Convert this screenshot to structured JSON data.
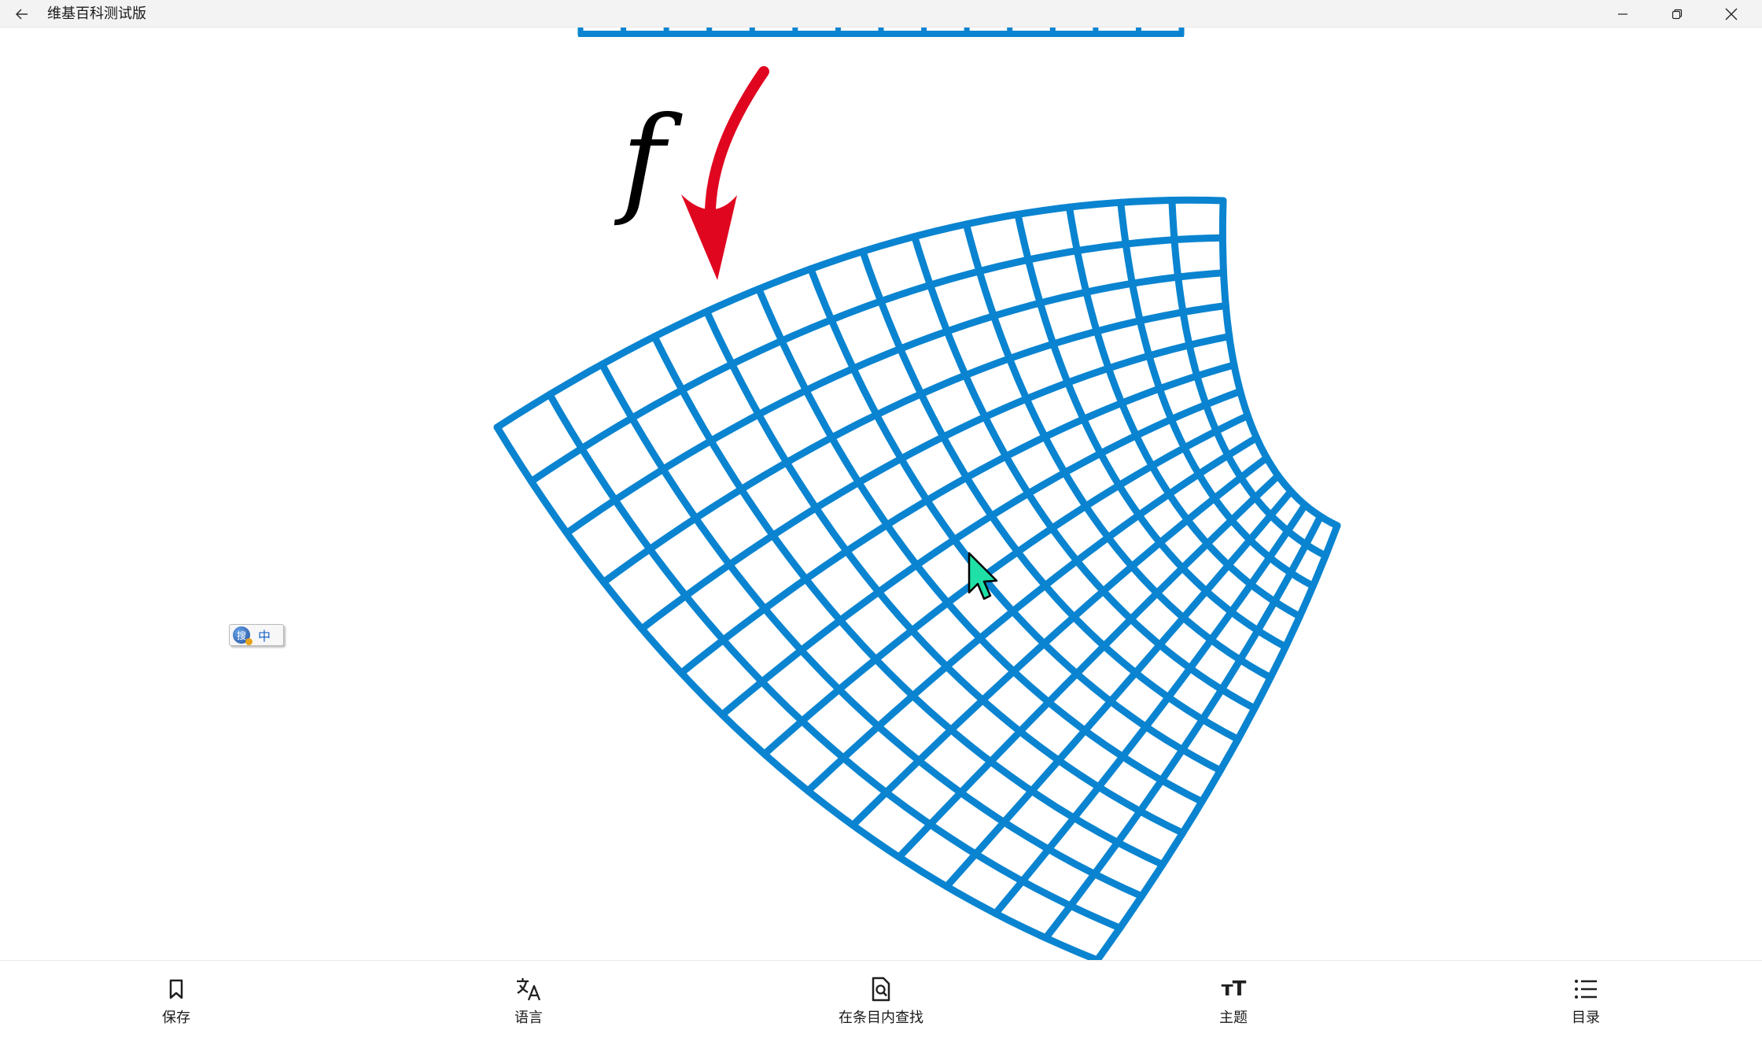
{
  "window": {
    "title": "维基百科测试版",
    "back_icon": "back-arrow-icon",
    "minimize_icon": "minimize-icon",
    "maximize_icon": "restore-icon",
    "close_icon": "close-icon"
  },
  "figure": {
    "function_label": "f",
    "grid_color": "#0a84d0",
    "arrow_color": "#e0061f",
    "grid_divisions": 14
  },
  "ime": {
    "logo_icon": "sogou-ime-icon",
    "logo_char": "搜",
    "lang_label": "中"
  },
  "toolbar": {
    "items": [
      {
        "label": "保存",
        "icon": "bookmark-icon"
      },
      {
        "label": "语言",
        "icon": "translate-icon"
      },
      {
        "label": "在条目内查找",
        "icon": "find-in-page-icon"
      },
      {
        "label": "主题",
        "icon": "text-size-icon",
        "icon_text": "тT"
      },
      {
        "label": "目录",
        "icon": "list-icon"
      }
    ]
  },
  "colors": {
    "titlebar_bg": "#f3f3f3",
    "cursor_fill": "#1fe0a6"
  }
}
